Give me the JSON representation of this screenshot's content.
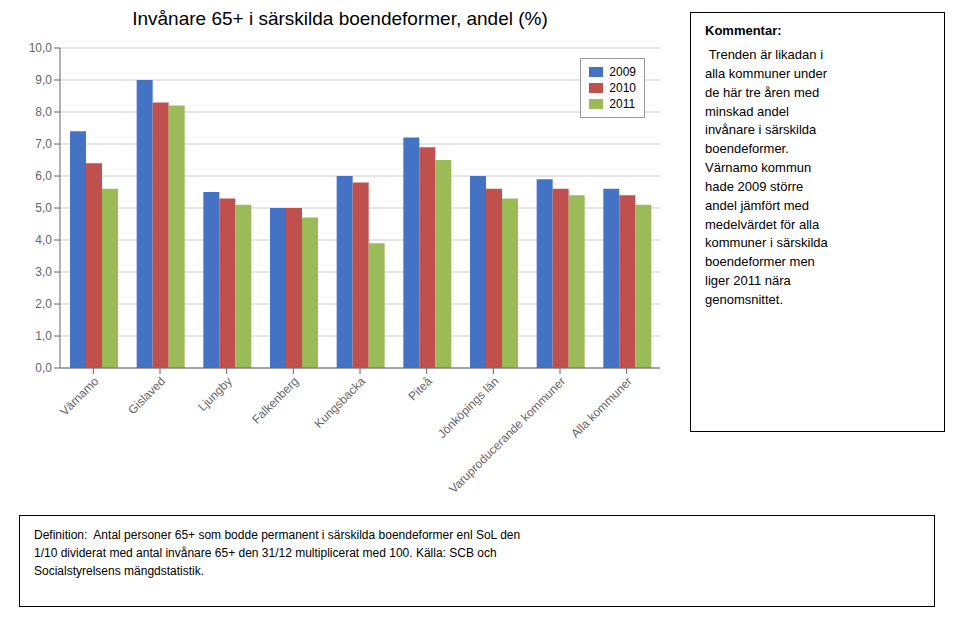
{
  "chart_data": {
    "type": "bar",
    "title": "Invånare 65+ i särskilda boendeformer, andel (%)",
    "categories": [
      "Värnamo",
      "Gislaved",
      "Ljungby",
      "Falkenberg",
      "Kungsbacka",
      "Piteå",
      "Jönköpings län",
      "Varuproducerande kommuner",
      "Alla kommuner"
    ],
    "series": [
      {
        "name": "2009",
        "color": "#4472C4",
        "values": [
          7.4,
          9.0,
          5.5,
          5.0,
          6.0,
          7.2,
          6.0,
          5.9,
          5.6
        ]
      },
      {
        "name": "2010",
        "color": "#C0504D",
        "values": [
          6.4,
          8.3,
          5.3,
          5.0,
          5.8,
          6.9,
          5.6,
          5.6,
          5.4
        ]
      },
      {
        "name": "2011",
        "color": "#9BBB59",
        "values": [
          5.6,
          8.2,
          5.1,
          4.7,
          3.9,
          6.5,
          5.3,
          5.4,
          5.1
        ]
      }
    ],
    "ylim": [
      0,
      10.0
    ],
    "yticks": [
      {
        "value": 0.0,
        "label": "0,0"
      },
      {
        "value": 1.0,
        "label": "1,0"
      },
      {
        "value": 2.0,
        "label": "2,0"
      },
      {
        "value": 3.0,
        "label": "3,0"
      },
      {
        "value": 4.0,
        "label": "4,0"
      },
      {
        "value": 5.0,
        "label": "5,0"
      },
      {
        "value": 6.0,
        "label": "6,0"
      },
      {
        "value": 7.0,
        "label": "7,0"
      },
      {
        "value": 8.0,
        "label": "8,0"
      },
      {
        "value": 9.0,
        "label": "9,0"
      },
      {
        "value": 10.0,
        "label": "10,0"
      }
    ],
    "grid": true,
    "legend": "upper right",
    "annotations": [
      {
        "title": "Kommentar:",
        "text": " Trenden är likadan i\nalla kommuner under\nde här tre åren med\nminskad andel\ninvånare i särskilda\nboendeformer.\nVärnamo kommun\nhade 2009 större\nandel jämfört med\nmedelvärdet för alla\nkommuner i särskilda\nboendeformer men\nliger 2011 nära\ngenomsnittet."
      },
      {
        "text": "Definition:  Antal personer 65+ som bodde permanent i särskilda boendeformer enl SoL den\n1/10 dividerat med antal invånare 65+ den 31/12 multiplicerat med 100. Källa: SCB och\nSocialstyrelsens mängdstatistik."
      }
    ]
  }
}
